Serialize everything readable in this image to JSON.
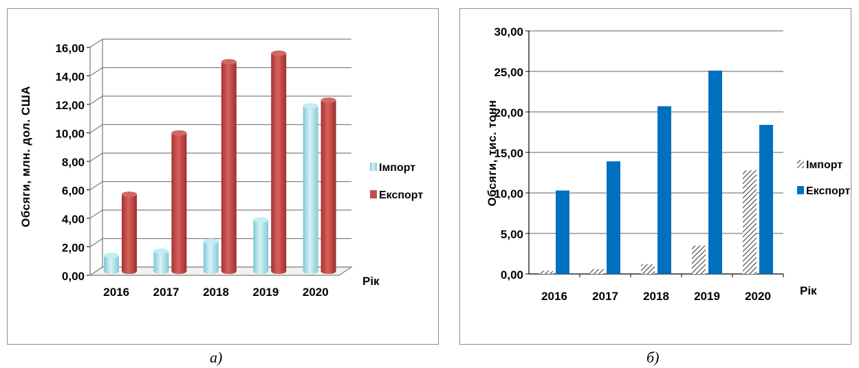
{
  "captions": {
    "a": "а)",
    "b": "б)"
  },
  "colors": {
    "import_a": "#a9dde8",
    "export_a": "#c0504d",
    "import_b_hatch": "#404040",
    "export_b": "#0070c0",
    "gridline": "#7f7f7f"
  },
  "chart_data": [
    {
      "type": "bar",
      "style": "3d-cylinder",
      "categories": [
        "2016",
        "2017",
        "2018",
        "2019",
        "2020"
      ],
      "series": [
        {
          "name": "Імпорт",
          "values": [
            1.1,
            1.4,
            2.1,
            3.6,
            11.6
          ]
        },
        {
          "name": "Експорт",
          "values": [
            5.4,
            9.7,
            14.7,
            15.3,
            12.0
          ]
        }
      ],
      "title": "",
      "xlabel": "Рік",
      "ylabel": "Обсяги, млн. дол. США",
      "ylim": [
        0,
        16
      ],
      "yticks": [
        "0,00",
        "2,00",
        "4,00",
        "6,00",
        "8,00",
        "10,00",
        "12,00",
        "14,00",
        "16,00"
      ],
      "grid": true,
      "legend": "right"
    },
    {
      "type": "bar",
      "categories": [
        "2016",
        "2017",
        "2018",
        "2019",
        "2020"
      ],
      "series": [
        {
          "name": "Імпорт",
          "values": [
            0.4,
            0.6,
            1.2,
            3.5,
            12.8
          ]
        },
        {
          "name": "Експорт",
          "values": [
            10.3,
            13.9,
            20.7,
            25.1,
            18.4
          ]
        }
      ],
      "title": "",
      "xlabel": "Рік",
      "ylabel": "Обсяги, тис. тонн",
      "ylim": [
        0,
        30
      ],
      "yticks": [
        "0,00",
        "5,00",
        "10,00",
        "15,00",
        "20,00",
        "25,00",
        "30,00"
      ],
      "grid": true,
      "legend": "right"
    }
  ]
}
